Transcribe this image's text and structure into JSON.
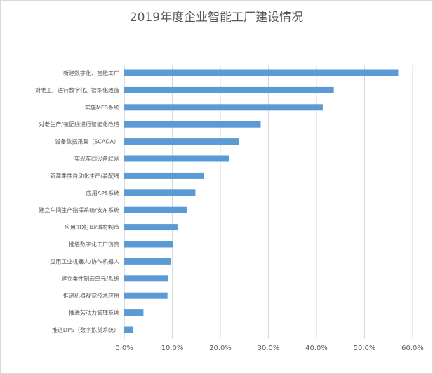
{
  "chart_data": {
    "type": "bar",
    "orientation": "horizontal",
    "title": "2019年度企业智能工厂建设情况",
    "xlabel": "",
    "ylabel": "",
    "xlim": [
      0,
      0.6
    ],
    "grid": true,
    "bar_color": "#5b9bd5",
    "categories": [
      "新建数字化、智能工厂",
      "对老工厂进行数字化、智能化改造",
      "实施MES系统",
      "对老生产/装配线进行智能化改造",
      "设备数据采集（SCADA）",
      "实现车间设备联网",
      "新建柔性自动化生产/装配线",
      "应用APS系统",
      "建立车间生产指挥系统/安东系统",
      "应用3D打印/增材制造",
      "推进数字化工厂仿真",
      "应用工业机器人/协作机器人",
      "建立柔性制造单元/系统",
      "推进机器视觉技术应用",
      "推进劳动力管理系统",
      "推进DPS（数字拣货系统）"
    ],
    "values": [
      0.57,
      0.436,
      0.413,
      0.284,
      0.238,
      0.218,
      0.165,
      0.148,
      0.13,
      0.112,
      0.101,
      0.097,
      0.092,
      0.09,
      0.04,
      0.019
    ],
    "tick_labels": [
      "0.0%",
      "10.0%",
      "20.0%",
      "30.0%",
      "40.0%",
      "50.0%",
      "60.0%"
    ]
  }
}
